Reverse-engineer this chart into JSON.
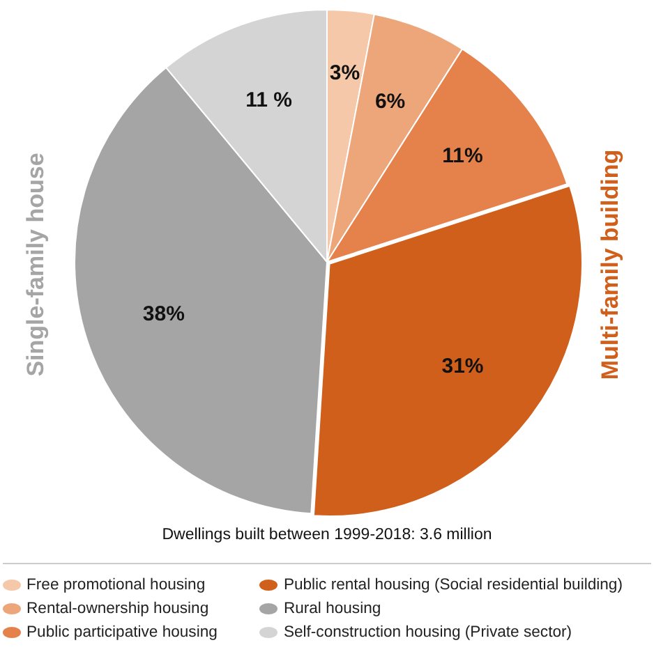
{
  "chart_data": {
    "type": "pie",
    "categories": [
      "Free promotional housing",
      "Rental-ownership housing",
      "Public participative housing",
      "Public rental housing (Social residential building)",
      "Rural housing",
      "Self-construction housing (Private sector)"
    ],
    "values": [
      3,
      6,
      11,
      31,
      38,
      11
    ],
    "value_labels": [
      "3%",
      "6%",
      "11%",
      "31%",
      "38%",
      "11 %"
    ],
    "colors": [
      "#f4c8a8",
      "#eda57a",
      "#e5814a",
      "#cf5f1a",
      "#a5a5a5",
      "#d4d4d4"
    ],
    "legend": "bottom",
    "annotations": [
      "Dwellings built between 1999-2018: 3.6 million",
      "Single-family house",
      "Multi-family building"
    ]
  }
}
